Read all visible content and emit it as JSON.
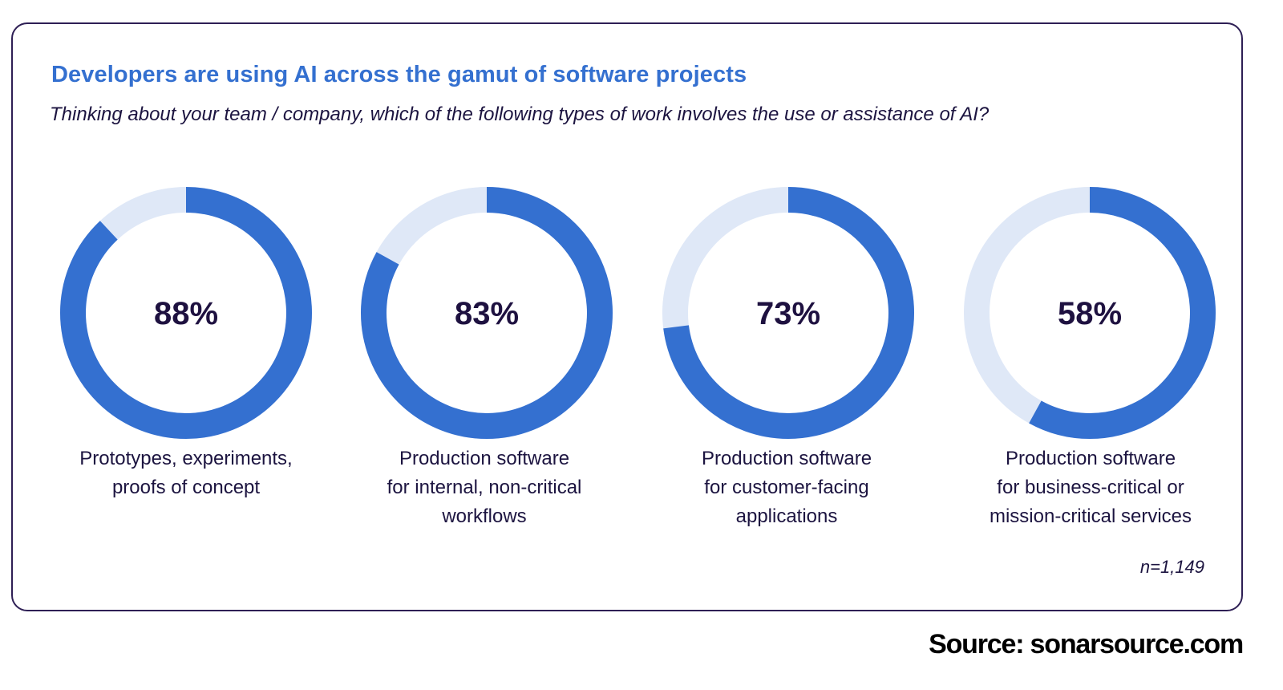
{
  "chart_data": {
    "type": "pie",
    "title": "Developers are using AI across the gamut of software projects",
    "subtitle": "Thinking about your team / company, which of the following types of work involves the use or assistance of AI?",
    "categories": [
      "Prototypes, experiments,\nproofs of concept",
      "Production software\nfor internal, non-critical\nworkflows",
      "Production software\nfor customer-facing\napplications",
      "Production software\nfor business-critical or\nmission-critical services"
    ],
    "values": [
      88,
      83,
      73,
      58
    ],
    "value_labels": [
      "88%",
      "83%",
      "73%",
      "58%"
    ],
    "note": "n=1,149",
    "colors": {
      "filled": "#3470d0",
      "remainder": "#dfe8f7",
      "title": "#3470d0",
      "text": "#1c1440"
    }
  },
  "source": "Source: sonarsource.com"
}
